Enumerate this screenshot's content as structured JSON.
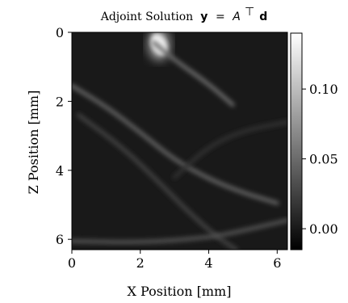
{
  "chart_data": {
    "type": "heatmap",
    "title": "Adjoint Solution",
    "title_equation": {
      "vec_y": "y",
      "equals": " = ",
      "matrix": "A",
      "transpose": "⊤",
      "vec_d": "d"
    },
    "xlabel": "X Position [mm]",
    "ylabel": "Z Position [mm]",
    "xlim": [
      0,
      6.3
    ],
    "ylim": [
      6.3,
      0
    ],
    "x_ticks": [
      0,
      2,
      4,
      6
    ],
    "y_ticks": [
      0,
      2,
      4,
      6
    ],
    "x_tick_labels": [
      "0",
      "2",
      "4",
      "6"
    ],
    "y_tick_labels": [
      "0",
      "2",
      "4",
      "6"
    ],
    "colormap": "gray",
    "colorbar": {
      "vmin": -0.015,
      "vmax": 0.14,
      "ticks": [
        0.0,
        0.05,
        0.1
      ],
      "tick_labels": [
        "0.00",
        "0.05",
        "0.10"
      ]
    },
    "background_value": 0.0,
    "features": [
      {
        "name": "bright blob near top",
        "x": 2.55,
        "z": 0.35,
        "value": 0.13
      },
      {
        "name": "arc from upper-left",
        "points": [
          [
            0.0,
            1.55
          ],
          [
            1.0,
            2.15
          ],
          [
            2.0,
            2.9
          ],
          [
            3.0,
            3.7
          ],
          [
            4.0,
            4.25
          ],
          [
            5.0,
            4.65
          ],
          [
            6.0,
            4.95
          ]
        ],
        "value": 0.045
      },
      {
        "name": "upper arc to right",
        "points": [
          [
            2.4,
            0.3
          ],
          [
            3.0,
            0.8
          ],
          [
            4.0,
            1.5
          ],
          [
            4.7,
            2.1
          ]
        ],
        "value": 0.05
      },
      {
        "name": "sweeping arc",
        "points": [
          [
            0.2,
            2.4
          ],
          [
            1.5,
            3.35
          ],
          [
            2.6,
            4.4
          ],
          [
            3.4,
            5.2
          ],
          [
            4.2,
            5.9
          ],
          [
            4.8,
            6.3
          ]
        ],
        "value": 0.025
      },
      {
        "name": "bottom arc",
        "points": [
          [
            0.0,
            6.05
          ],
          [
            2.0,
            6.1
          ],
          [
            4.0,
            5.95
          ],
          [
            5.0,
            5.75
          ],
          [
            6.3,
            5.45
          ]
        ],
        "value": 0.035
      },
      {
        "name": "right-side arc",
        "points": [
          [
            3.0,
            4.2
          ],
          [
            4.0,
            3.3
          ],
          [
            5.0,
            2.85
          ],
          [
            6.3,
            2.6
          ]
        ],
        "value": 0.015
      }
    ],
    "grid": false
  }
}
